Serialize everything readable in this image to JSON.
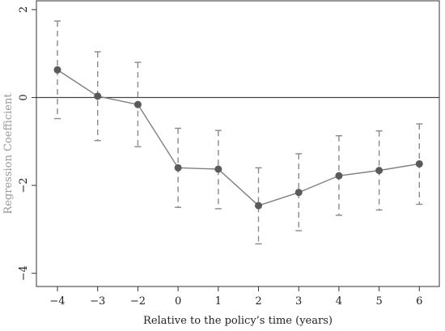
{
  "chart_data": {
    "type": "line",
    "title": "",
    "xlabel": "Relative to the policy’s time (years)",
    "ylabel": "Regression Coefficient",
    "categories": [
      "−4",
      "−3",
      "−2",
      "0",
      "1",
      "2",
      "3",
      "4",
      "5",
      "6"
    ],
    "y_ticks": [
      {
        "value": 2,
        "label": "2"
      },
      {
        "value": 0,
        "label": "0"
      },
      {
        "value": -2,
        "label": "−2"
      },
      {
        "value": -4,
        "label": "−4"
      }
    ],
    "ylim": [
      -4.3,
      2.2
    ],
    "reference_line": 0,
    "grid": false,
    "legend": "none",
    "series": [
      {
        "values": [
          0.63,
          0.03,
          -0.16,
          -1.6,
          -1.63,
          -2.46,
          -2.16,
          -1.78,
          -1.66,
          -1.51
        ],
        "ci_lower": [
          -0.48,
          -0.98,
          -1.12,
          -2.5,
          -2.53,
          -3.33,
          -3.03,
          -2.68,
          -2.56,
          -2.43
        ],
        "ci_upper": [
          1.74,
          1.04,
          0.8,
          -0.7,
          -0.75,
          -1.6,
          -1.28,
          -0.87,
          -0.76,
          -0.6
        ]
      }
    ],
    "colors": {
      "line": "#808080",
      "marker": "#5a5a5a",
      "error_bar": "#8a8a8a",
      "axis": "#333333",
      "reference": "#444444"
    }
  }
}
